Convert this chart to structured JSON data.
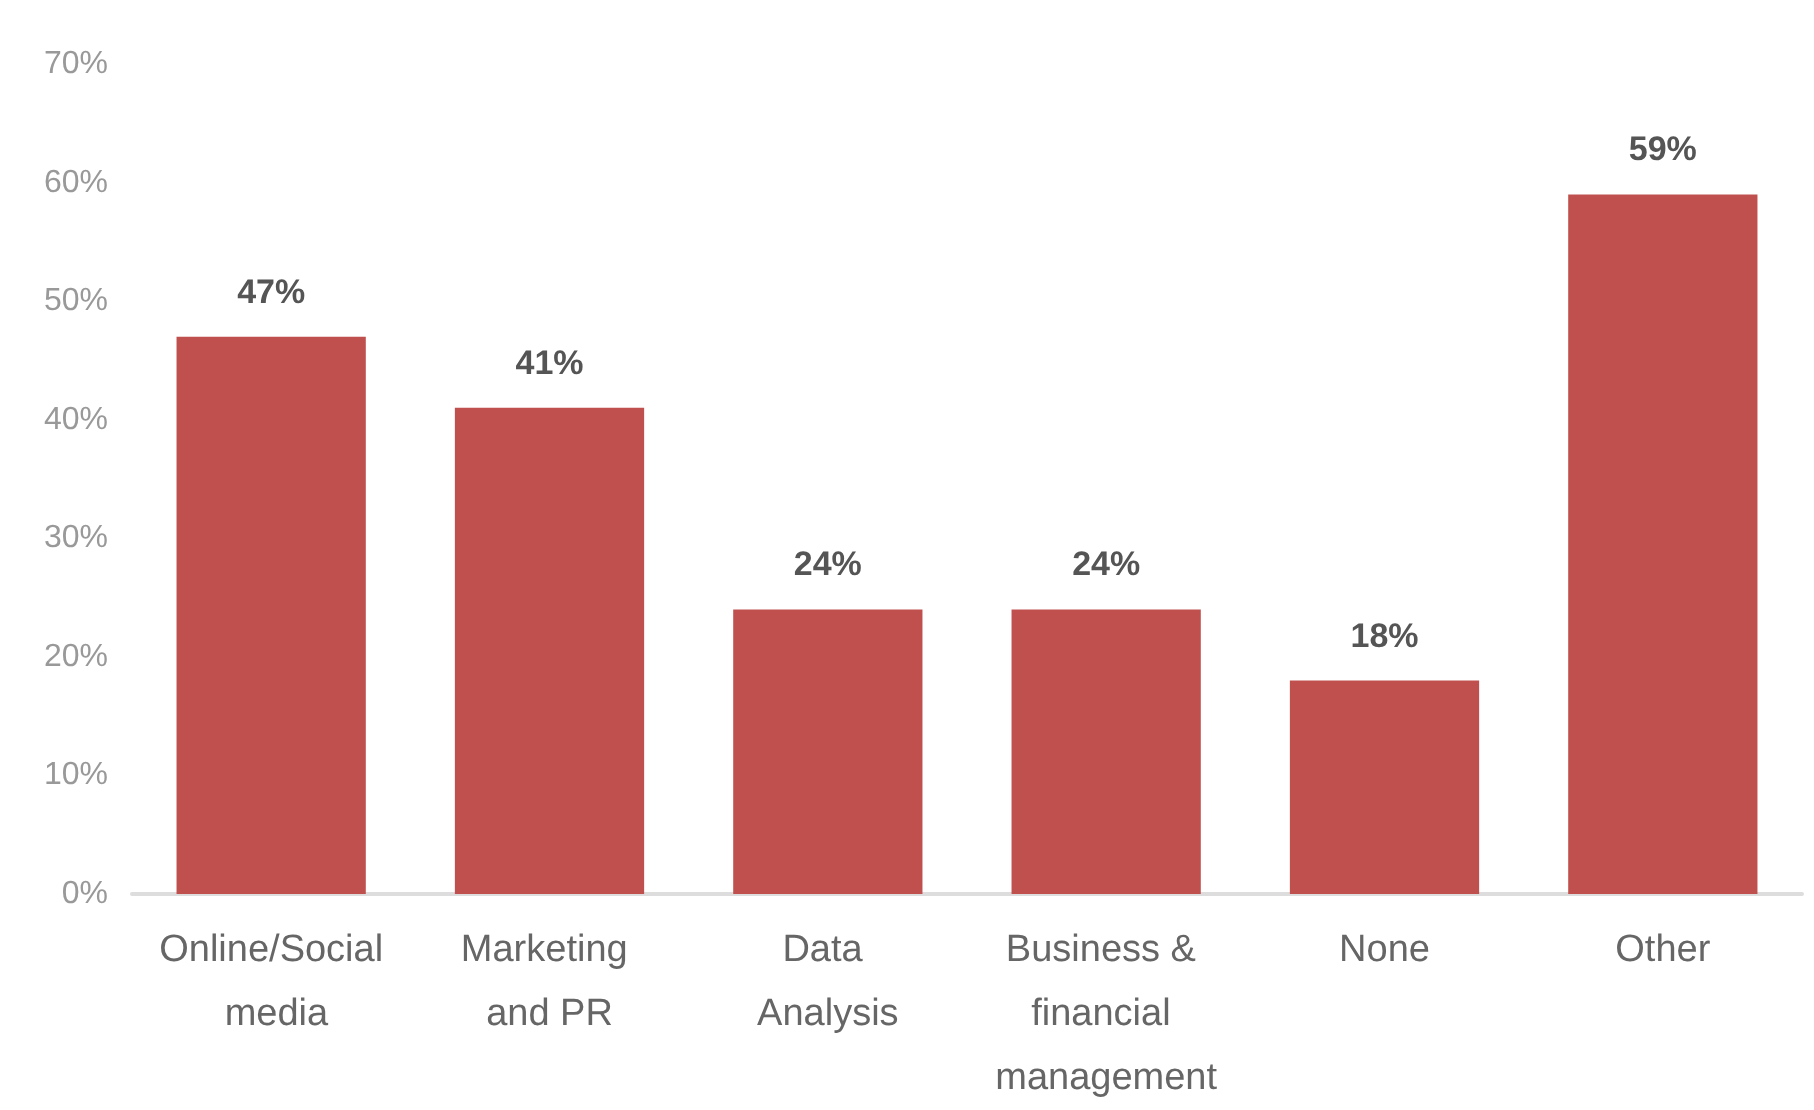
{
  "chart_data": {
    "type": "bar",
    "categories": [
      "Online/Social media",
      "Marketing and PR",
      "Data Analysis",
      "Business & financial management",
      "None",
      "Other"
    ],
    "values": [
      47,
      41,
      24,
      24,
      18,
      59
    ],
    "value_labels": [
      "47%",
      "41%",
      "24%",
      "24%",
      "18%",
      "59%"
    ],
    "color": "#c0504d",
    "ylim": [
      0,
      70
    ],
    "yticks": [
      {
        "value": 0,
        "label": "0%"
      },
      {
        "value": 10,
        "label": "10%"
      },
      {
        "value": 20,
        "label": "20%"
      },
      {
        "value": 30,
        "label": "30%"
      },
      {
        "value": 40,
        "label": "40%"
      },
      {
        "value": 50,
        "label": "50%"
      },
      {
        "value": 60,
        "label": "60%"
      },
      {
        "value": 70,
        "label": "70%"
      }
    ],
    "grid": false
  }
}
